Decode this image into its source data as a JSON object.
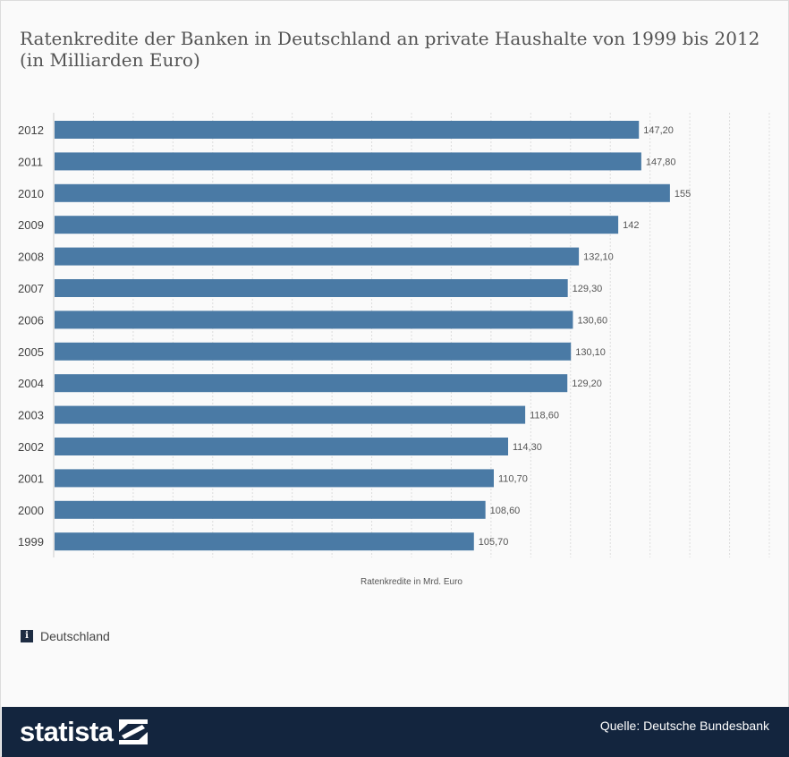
{
  "chart_data": {
    "type": "bar",
    "orientation": "horizontal",
    "title": "Ratenkredite der Banken in Deutschland an private Haushalte von 1999 bis 2012 (in Milliarden Euro)",
    "xlabel": "Ratenkredite in Mrd. Euro",
    "ylabel": "",
    "categories": [
      "2012",
      "2011",
      "2010",
      "2009",
      "2008",
      "2007",
      "2006",
      "2005",
      "2004",
      "2003",
      "2002",
      "2001",
      "2000",
      "1999"
    ],
    "values": [
      147.2,
      147.8,
      155,
      142,
      132.1,
      129.3,
      130.6,
      130.1,
      129.2,
      118.6,
      114.3,
      110.7,
      108.6,
      105.7
    ],
    "value_labels": [
      "147,20",
      "147,80",
      "155",
      "142",
      "132,10",
      "129,30",
      "130,60",
      "130,10",
      "129,20",
      "118,60",
      "114,30",
      "110,70",
      "108,60",
      "105,70"
    ],
    "xlim": [
      0,
      180
    ],
    "grid": true,
    "bar_color": "#4a7aa5"
  },
  "note": {
    "icon": "info-icon",
    "label": "Deutschland"
  },
  "footer": {
    "brand": "statista",
    "source": "Quelle: Deutsche Bundesbank"
  }
}
